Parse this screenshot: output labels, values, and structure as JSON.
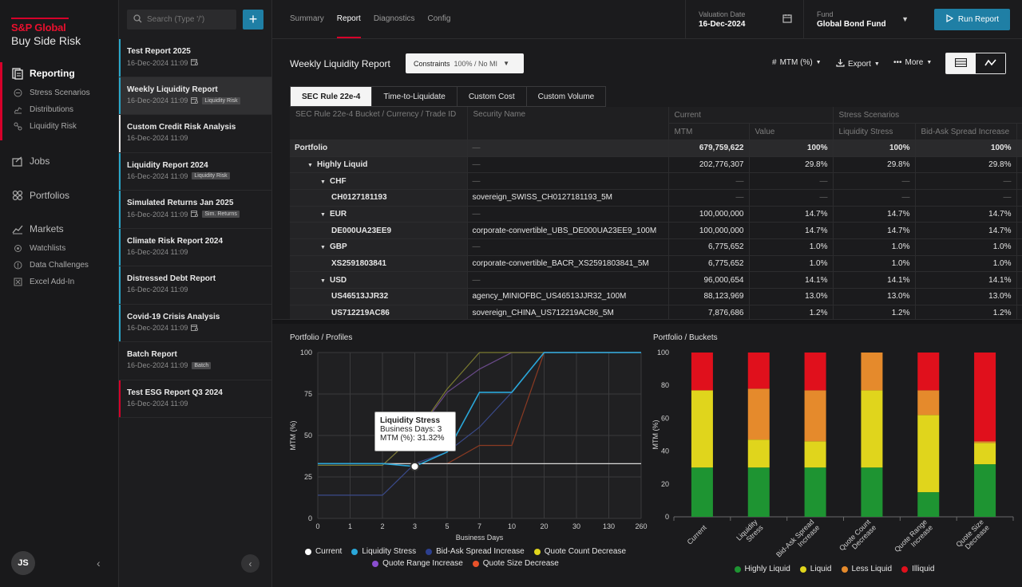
{
  "brand": {
    "name": "S&P Global",
    "product": "Buy Side Risk"
  },
  "nav": {
    "reporting": {
      "label": "Reporting",
      "items": [
        "Stress Scenarios",
        "Distributions",
        "Liquidity Risk"
      ]
    },
    "jobs": "Jobs",
    "portfolios": "Portfolios",
    "markets": {
      "label": "Markets",
      "items": [
        "Watchlists",
        "Data Challenges",
        "Excel Add-In"
      ]
    },
    "user_initials": "JS"
  },
  "search": {
    "placeholder": "Search (Type '/')"
  },
  "reports": [
    {
      "title": "Test Report 2025",
      "date": "16-Dec-2024 11:09",
      "tag": "",
      "stripe": "#2aa7c9",
      "cal": true
    },
    {
      "title": "Weekly Liquidity Report",
      "date": "16-Dec-2024 11:09",
      "tag": "Liquidity Risk",
      "stripe": "#2aa7c9",
      "cal": true
    },
    {
      "title": "Custom Credit Risk Analysis",
      "date": "16-Dec-2024 11:09",
      "tag": "",
      "stripe": "#e8e8e8",
      "cal": false
    },
    {
      "title": "Liquidity Report 2024",
      "date": "16-Dec-2024 11:09",
      "tag": "Liquidity Risk",
      "stripe": "#2aa7c9",
      "cal": false
    },
    {
      "title": "Simulated Returns Jan 2025",
      "date": "16-Dec-2024 11:09",
      "tag": "Sim. Returns",
      "stripe": "#2aa7c9",
      "cal": true
    },
    {
      "title": "Climate Risk Report 2024",
      "date": "16-Dec-2024 11:09",
      "tag": "",
      "stripe": "#2aa7c9",
      "cal": false
    },
    {
      "title": "Distressed Debt Report",
      "date": "16-Dec-2024 11:09",
      "tag": "",
      "stripe": "#2aa7c9",
      "cal": false
    },
    {
      "title": "Covid-19 Crisis Analysis",
      "date": "16-Dec-2024 11:09",
      "tag": "",
      "stripe": "#2aa7c9",
      "cal": true
    },
    {
      "title": "Batch Report",
      "date": "16-Dec-2024 11:09",
      "tag": "Batch",
      "stripe": "#1d1d1f",
      "cal": false
    },
    {
      "title": "Test ESG Report Q3 2024",
      "date": "16-Dec-2024 11:09",
      "tag": "",
      "stripe": "#d6002a",
      "cal": false
    }
  ],
  "topbar": {
    "tabs": [
      "Summary",
      "Report",
      "Diagnostics",
      "Config"
    ],
    "active_tab": 1,
    "valuation_label": "Valuation Date",
    "valuation_value": "16-Dec-2024",
    "fund_label": "Fund",
    "fund_value": "Global Bond Fund",
    "run_label": "Run Report"
  },
  "report": {
    "title": "Weekly Liquidity Report",
    "constraints_label": "Constraints",
    "constraints_value": "100% / No MI",
    "mtm_label": "MTM (%)",
    "export_label": "Export",
    "more_label": "More"
  },
  "subtabs": [
    "SEC Rule 22e-4",
    "Time-to-Liquidate",
    "Custom Cost",
    "Custom Volume"
  ],
  "table": {
    "head_bucket": "SEC Rule 22e-4 Bucket / Currency / Trade ID",
    "head_security": "Security Name",
    "head_current": "Current",
    "head_stress": "Stress Scenarios",
    "head_mtm": "MTM",
    "head_value": "Value",
    "head_liq": "Liquidity Stress",
    "head_bid": "Bid-Ask Spread Increase",
    "head_more": "C",
    "rows": [
      {
        "level": 0,
        "label": "Portfolio",
        "security": "—",
        "mtm": "679,759,622",
        "value": "100%",
        "liq": "100%",
        "bid": "100%",
        "toggle": false
      },
      {
        "level": 1,
        "label": "Highly Liquid",
        "security": "—",
        "mtm": "202,776,307",
        "value": "29.8%",
        "liq": "29.8%",
        "bid": "29.8%",
        "toggle": true
      },
      {
        "level": 2,
        "label": "CHF",
        "security": "—",
        "mtm": "—",
        "value": "—",
        "liq": "—",
        "bid": "—",
        "toggle": true
      },
      {
        "level": 3,
        "label": "CH0127181193",
        "security": "sovereign_SWISS_CH0127181193_5M",
        "mtm": "—",
        "value": "—",
        "liq": "—",
        "bid": "—",
        "toggle": false
      },
      {
        "level": 2,
        "label": "EUR",
        "security": "—",
        "mtm": "100,000,000",
        "value": "14.7%",
        "liq": "14.7%",
        "bid": "14.7%",
        "toggle": true
      },
      {
        "level": 3,
        "label": "DE000UA23EE9",
        "security": "corporate-convertible_UBS_DE000UA23EE9_100M",
        "mtm": "100,000,000",
        "value": "14.7%",
        "liq": "14.7%",
        "bid": "14.7%",
        "toggle": false
      },
      {
        "level": 2,
        "label": "GBP",
        "security": "—",
        "mtm": "6,775,652",
        "value": "1.0%",
        "liq": "1.0%",
        "bid": "1.0%",
        "toggle": true
      },
      {
        "level": 3,
        "label": "XS2591803841",
        "security": "corporate-convertible_BACR_XS2591803841_5M",
        "mtm": "6,775,652",
        "value": "1.0%",
        "liq": "1.0%",
        "bid": "1.0%",
        "toggle": false
      },
      {
        "level": 2,
        "label": "USD",
        "security": "—",
        "mtm": "96,000,654",
        "value": "14.1%",
        "liq": "14.1%",
        "bid": "14.1%",
        "toggle": true
      },
      {
        "level": 3,
        "label": "US46513JJR32",
        "security": "agency_MINIOFBC_US46513JJR32_100M",
        "mtm": "88,123,969",
        "value": "13.0%",
        "liq": "13.0%",
        "bid": "13.0%",
        "toggle": false
      },
      {
        "level": 3,
        "label": "US712219AC86",
        "security": "sovereign_CHINA_US712219AC86_5M",
        "mtm": "7,876,686",
        "value": "1.2%",
        "liq": "1.2%",
        "bid": "1.2%",
        "toggle": false
      }
    ]
  },
  "tooltip": {
    "title": "Liquidity Stress",
    "line1": "Business Days: 3",
    "line2": "MTM (%): 31.32%"
  },
  "colors": {
    "accent": "#1f7fa5",
    "brand_red": "#d6002a",
    "highly_liquid": "#1e9432",
    "liquid": "#e0d51c",
    "less_liquid": "#e58a2c",
    "illiquid": "#e0101c"
  },
  "chart_data": [
    {
      "type": "line",
      "title": "Portfolio / Profiles",
      "xlabel": "Business Days",
      "ylabel": "MTM (%)",
      "x": [
        "0",
        "1",
        "2",
        "3",
        "5",
        "7",
        "10",
        "20",
        "30",
        "130",
        "260"
      ],
      "ylim": [
        0,
        100
      ],
      "yticks": [
        0,
        25,
        50,
        75,
        100
      ],
      "series": [
        {
          "name": "Current",
          "color": "#d9d9d9",
          "values": [
            33,
            33,
            33,
            33,
            33,
            33,
            33,
            33,
            33,
            33,
            33
          ]
        },
        {
          "name": "Liquidity Stress",
          "color": "#2aa7d9",
          "values": [
            33,
            33,
            33,
            31.32,
            40,
            76,
            76,
            100,
            100,
            100,
            100
          ]
        },
        {
          "name": "Bid-Ask Spread Increase",
          "color": "#3a4a8a",
          "values": [
            14,
            14,
            14,
            33,
            40,
            55,
            76,
            100,
            100,
            100,
            100
          ]
        },
        {
          "name": "Quote Count Decrease",
          "color": "#7a7a30",
          "values": [
            32,
            32,
            32,
            50,
            78,
            100,
            100,
            100,
            100,
            100,
            100
          ]
        },
        {
          "name": "Quote Range Increase",
          "color": "#6a4a8a",
          "values": [
            32,
            32,
            32,
            50,
            76,
            90,
            100,
            100,
            100,
            100,
            100
          ]
        },
        {
          "name": "Quote Size Decrease",
          "color": "#8a3a22",
          "values": [
            33,
            33,
            33,
            33,
            33,
            44,
            44,
            100,
            100,
            100,
            100
          ]
        }
      ]
    },
    {
      "type": "bar",
      "stacked": true,
      "title": "Portfolio / Buckets",
      "ylabel": "MTM (%)",
      "ylim": [
        0,
        100
      ],
      "yticks": [
        0,
        20,
        40,
        60,
        80,
        100
      ],
      "categories": [
        "Current",
        "Liquidity Stress",
        "Bid-Ask Spread Increase",
        "Quote Count Decrease",
        "Quote Range Increase",
        "Quote Size Decrease"
      ],
      "series": [
        {
          "name": "Highly Liquid",
          "color": "#1e9432",
          "values": [
            30,
            30,
            30,
            30,
            15,
            32
          ]
        },
        {
          "name": "Liquid",
          "color": "#e0d51c",
          "values": [
            47,
            17,
            16,
            47,
            47,
            13
          ]
        },
        {
          "name": "Less Liquid",
          "color": "#e58a2c",
          "values": [
            0,
            31,
            31,
            23,
            15,
            1
          ]
        },
        {
          "name": "Illiquid",
          "color": "#e0101c",
          "values": [
            23,
            22,
            23,
            0,
            23,
            54
          ]
        }
      ]
    }
  ]
}
